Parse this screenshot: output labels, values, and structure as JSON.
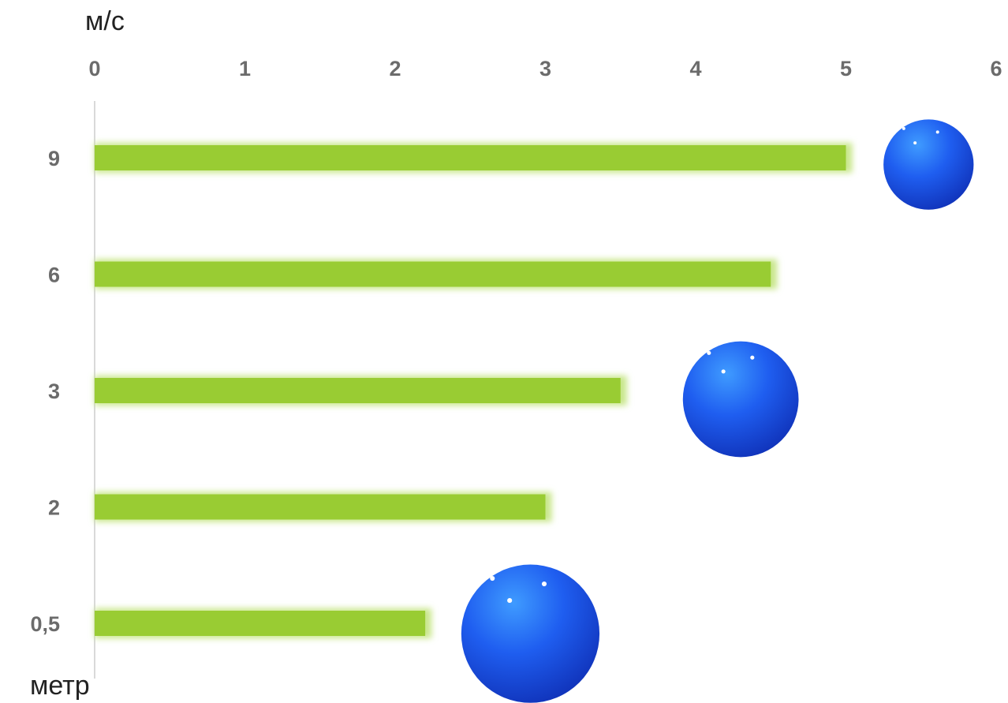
{
  "chart_data": {
    "type": "bar",
    "orientation": "horizontal",
    "x_unit_label": "м/с",
    "y_unit_label": "метр",
    "x_ticks": [
      "0",
      "1",
      "2",
      "3",
      "4",
      "5",
      "6"
    ],
    "xlim": [
      0,
      6
    ],
    "categories": [
      "9",
      "6",
      "3",
      "2",
      "0,5"
    ],
    "values": [
      5.0,
      4.5,
      3.5,
      3.0,
      2.2
    ],
    "bar_color": "#99cc33",
    "glow_color": "#c8e68a",
    "axis_color": "#d9d9d9",
    "grid": false,
    "legend": "none",
    "decorations": [
      {
        "name": "ball-icon",
        "x": 5.55,
        "category": "9",
        "size": 0.6,
        "color": "#1e55e6"
      },
      {
        "name": "ball-icon",
        "x": 4.3,
        "category": "3",
        "size": 0.77,
        "color": "#1e55e6"
      },
      {
        "name": "ball-icon",
        "x": 2.9,
        "category": "0,5",
        "size": 0.92,
        "color": "#1e55e6"
      }
    ]
  }
}
